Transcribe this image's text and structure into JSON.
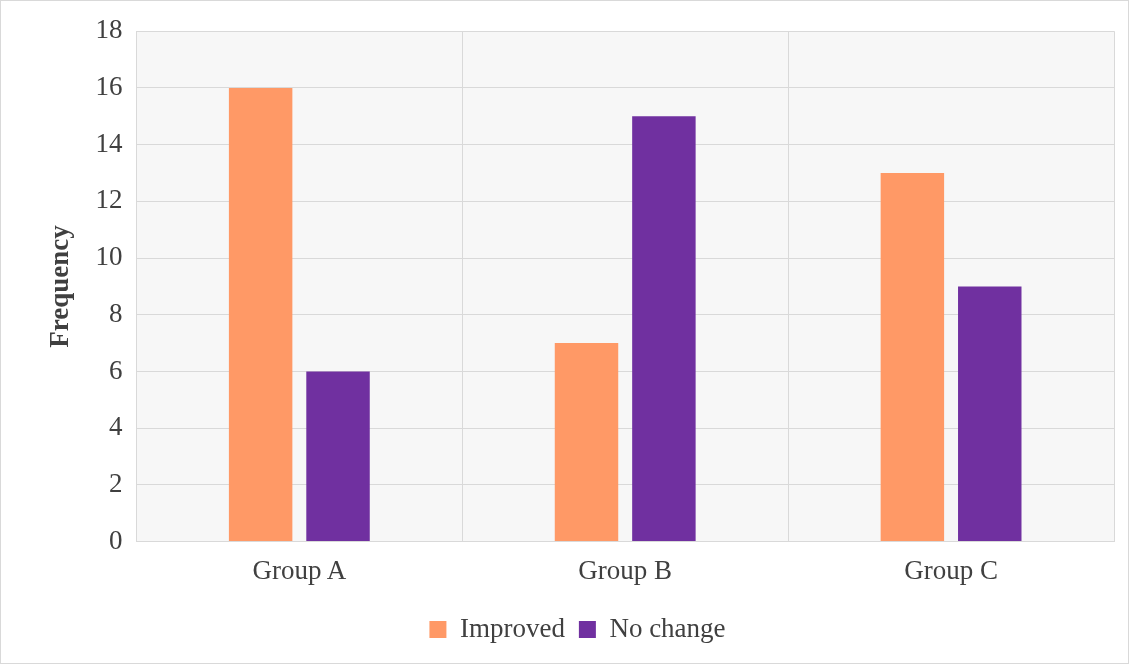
{
  "chart_data": {
    "type": "bar",
    "ylabel": "Frequency",
    "categories": [
      "Group A",
      "Group B",
      "Group C"
    ],
    "series": [
      {
        "name": "Improved",
        "color": "#ff9966",
        "values": [
          16,
          7,
          13
        ]
      },
      {
        "name": "No change",
        "color": "#7030a0",
        "values": [
          6,
          15,
          9
        ]
      }
    ],
    "ylim": [
      0,
      18
    ],
    "yticks": [
      0,
      2,
      4,
      6,
      8,
      10,
      12,
      14,
      16,
      18
    ],
    "grid": true,
    "legend": "bottom"
  }
}
